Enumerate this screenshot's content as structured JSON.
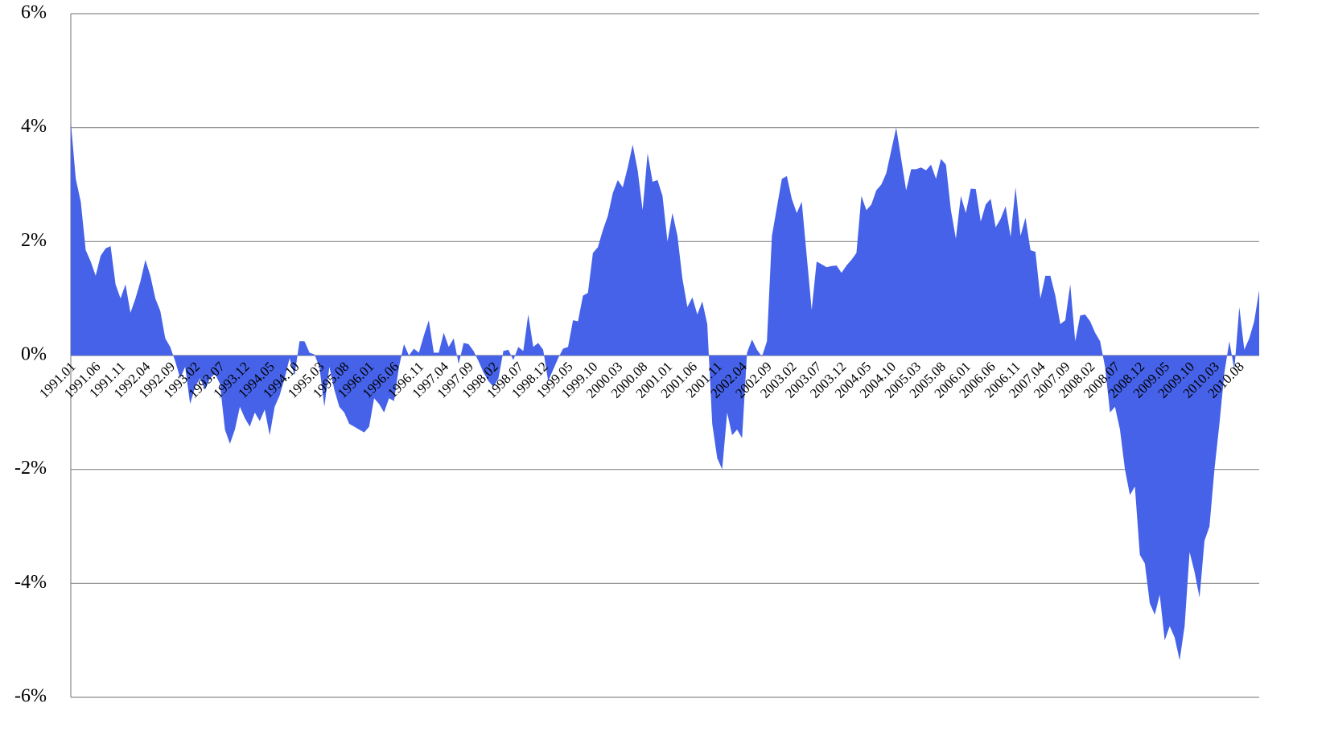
{
  "chart_data": {
    "type": "area",
    "color": "#4562e8",
    "grid": true,
    "ylim": [
      -6,
      6
    ],
    "yticks": [
      {
        "value": -6,
        "label": "-6%"
      },
      {
        "value": -4,
        "label": "-4%"
      },
      {
        "value": -2,
        "label": "-2%"
      },
      {
        "value": 0,
        "label": "0%"
      },
      {
        "value": 2,
        "label": "2%"
      },
      {
        "value": 4,
        "label": "4%"
      },
      {
        "value": 6,
        "label": "6%"
      }
    ],
    "categories": [
      "1991.01",
      null,
      null,
      null,
      null,
      "1991.06",
      null,
      null,
      null,
      null,
      "1991.11",
      null,
      null,
      null,
      null,
      "1992.04",
      null,
      null,
      null,
      null,
      "1992.09",
      null,
      null,
      null,
      null,
      "1993.02",
      null,
      null,
      null,
      null,
      "1993.07",
      null,
      null,
      null,
      null,
      "1993.12",
      null,
      null,
      null,
      null,
      "1994.05",
      null,
      null,
      null,
      null,
      "1994.10",
      null,
      null,
      null,
      null,
      "1995.03",
      null,
      null,
      null,
      null,
      "1995.08",
      null,
      null,
      null,
      null,
      "1996.01",
      null,
      null,
      null,
      null,
      "1996.06",
      null,
      null,
      null,
      null,
      "1996.11",
      null,
      null,
      null,
      null,
      "1997.04",
      null,
      null,
      null,
      null,
      "1997.09",
      null,
      null,
      null,
      null,
      "1998.02",
      null,
      null,
      null,
      null,
      "1998.07",
      null,
      null,
      null,
      null,
      "1998.12",
      null,
      null,
      null,
      null,
      "1999.05",
      null,
      null,
      null,
      null,
      "1999.10",
      null,
      null,
      null,
      null,
      "2000.03",
      null,
      null,
      null,
      null,
      "2000.08",
      null,
      null,
      null,
      null,
      "2001.01",
      null,
      null,
      null,
      null,
      "2001.06",
      null,
      null,
      null,
      null,
      "2001.11",
      null,
      null,
      null,
      null,
      "2002.04",
      null,
      null,
      null,
      null,
      "2002.09",
      null,
      null,
      null,
      null,
      "2003.02",
      null,
      null,
      null,
      null,
      "2003.07",
      null,
      null,
      null,
      null,
      "2003.12",
      null,
      null,
      null,
      null,
      "2004.05",
      null,
      null,
      null,
      null,
      "2004.10",
      null,
      null,
      null,
      null,
      "2005.03",
      null,
      null,
      null,
      null,
      "2005.08",
      null,
      null,
      null,
      null,
      "2006.01",
      null,
      null,
      null,
      null,
      "2006.06",
      null,
      null,
      null,
      null,
      "2006.11",
      null,
      null,
      null,
      null,
      "2007.04",
      null,
      null,
      null,
      null,
      "2007.09",
      null,
      null,
      null,
      null,
      "2008.02",
      null,
      null,
      null,
      null,
      "2008.07",
      null,
      null,
      null,
      null,
      "2008.12",
      null,
      null,
      null,
      null,
      "2009.05",
      null,
      null,
      null,
      null,
      "2009.10",
      null,
      null,
      null,
      null,
      "2010.03",
      null,
      null,
      null,
      null,
      "2010.08",
      null,
      null,
      null,
      null
    ],
    "values": [
      4.1,
      3.1,
      2.7,
      1.85,
      1.65,
      1.4,
      1.75,
      1.88,
      1.92,
      1.25,
      1.0,
      1.25,
      0.75,
      1.0,
      1.3,
      1.68,
      1.4,
      1.0,
      0.78,
      0.3,
      0.15,
      -0.1,
      -0.4,
      -0.2,
      -0.85,
      -0.55,
      -0.4,
      -0.6,
      -0.4,
      -0.32,
      -0.5,
      -1.3,
      -1.55,
      -1.3,
      -0.9,
      -1.1,
      -1.25,
      -1.0,
      -1.15,
      -0.95,
      -1.4,
      -0.9,
      -0.7,
      -0.4,
      -0.05,
      -0.35,
      0.25,
      0.25,
      0.05,
      0.02,
      -0.2,
      -0.9,
      -0.2,
      -0.6,
      -0.9,
      -1.0,
      -1.2,
      -1.25,
      -1.3,
      -1.35,
      -1.25,
      -0.75,
      -0.85,
      -1.0,
      -0.75,
      -0.8,
      -0.2,
      0.2,
      0.0,
      0.12,
      0.05,
      0.35,
      0.62,
      0.05,
      0.05,
      0.4,
      0.15,
      0.3,
      -0.15,
      0.22,
      0.2,
      0.08,
      -0.1,
      -0.3,
      -0.45,
      -0.55,
      -0.4,
      0.08,
      0.1,
      -0.08,
      0.15,
      0.08,
      0.72,
      0.15,
      0.22,
      0.1,
      -0.45,
      -0.25,
      -0.05,
      0.12,
      0.15,
      0.62,
      0.6,
      1.05,
      1.1,
      1.8,
      1.9,
      2.2,
      2.45,
      2.85,
      3.08,
      2.95,
      3.3,
      3.7,
      3.25,
      2.55,
      3.55,
      3.05,
      3.08,
      2.8,
      2.0,
      2.5,
      2.1,
      1.35,
      0.85,
      1.02,
      0.72,
      0.95,
      0.55,
      -1.2,
      -1.8,
      -2.0,
      -1.0,
      -1.4,
      -1.3,
      -1.45,
      0.05,
      0.28,
      0.1,
      -0.02,
      0.25,
      2.1,
      2.6,
      3.1,
      3.15,
      2.75,
      2.5,
      2.7,
      1.75,
      0.8,
      1.65,
      1.6,
      1.55,
      1.57,
      1.58,
      1.45,
      1.58,
      1.68,
      1.8,
      2.8,
      2.55,
      2.65,
      2.9,
      3.0,
      3.2,
      3.6,
      4.0,
      3.45,
      2.9,
      3.27,
      3.27,
      3.3,
      3.25,
      3.35,
      3.1,
      3.45,
      3.35,
      2.55,
      2.05,
      2.8,
      2.5,
      2.93,
      2.92,
      2.35,
      2.65,
      2.75,
      2.25,
      2.4,
      2.62,
      2.08,
      2.95,
      2.1,
      2.42,
      1.85,
      1.82,
      1.0,
      1.4,
      1.4,
      1.05,
      0.55,
      0.62,
      1.25,
      0.25,
      0.7,
      0.72,
      0.6,
      0.4,
      0.25,
      -0.2,
      -1.0,
      -0.9,
      -1.3,
      -2.0,
      -2.45,
      -2.3,
      -3.5,
      -3.65,
      -4.35,
      -4.55,
      -4.2,
      -5.0,
      -4.75,
      -4.95,
      -5.35,
      -4.75,
      -3.45,
      -3.8,
      -4.25,
      -3.25,
      -3.0,
      -2.0,
      -1.2,
      -0.3,
      0.25,
      -0.25,
      0.85,
      0.1,
      0.3,
      0.6,
      1.15
    ]
  }
}
